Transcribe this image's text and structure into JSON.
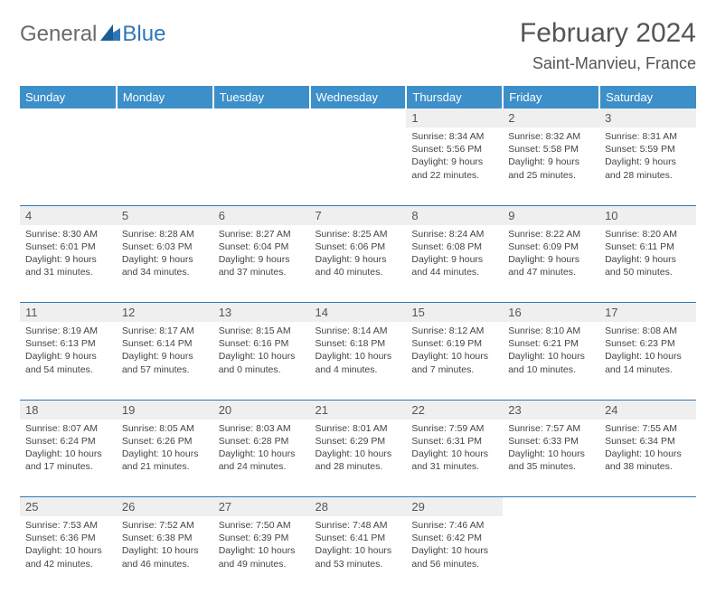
{
  "logo": {
    "text_general": "General",
    "text_blue": "Blue"
  },
  "title": "February 2024",
  "location": "Saint-Manvieu, France",
  "colors": {
    "header_bg": "#3d8fc9",
    "header_text": "#ffffff",
    "daynum_bg": "#efefef",
    "row_divider": "#2f78b7",
    "text": "#444444",
    "title_text": "#555555"
  },
  "typography": {
    "title_fontsize": 30,
    "location_fontsize": 18,
    "dayhdr_fontsize": 13,
    "daynum_fontsize": 13,
    "cell_fontsize": 10.5
  },
  "day_headers": [
    "Sunday",
    "Monday",
    "Tuesday",
    "Wednesday",
    "Thursday",
    "Friday",
    "Saturday"
  ],
  "weeks": [
    [
      null,
      null,
      null,
      null,
      {
        "n": "1",
        "sunrise": "8:34 AM",
        "sunset": "5:56 PM",
        "daylight": "9 hours and 22 minutes."
      },
      {
        "n": "2",
        "sunrise": "8:32 AM",
        "sunset": "5:58 PM",
        "daylight": "9 hours and 25 minutes."
      },
      {
        "n": "3",
        "sunrise": "8:31 AM",
        "sunset": "5:59 PM",
        "daylight": "9 hours and 28 minutes."
      }
    ],
    [
      {
        "n": "4",
        "sunrise": "8:30 AM",
        "sunset": "6:01 PM",
        "daylight": "9 hours and 31 minutes."
      },
      {
        "n": "5",
        "sunrise": "8:28 AM",
        "sunset": "6:03 PM",
        "daylight": "9 hours and 34 minutes."
      },
      {
        "n": "6",
        "sunrise": "8:27 AM",
        "sunset": "6:04 PM",
        "daylight": "9 hours and 37 minutes."
      },
      {
        "n": "7",
        "sunrise": "8:25 AM",
        "sunset": "6:06 PM",
        "daylight": "9 hours and 40 minutes."
      },
      {
        "n": "8",
        "sunrise": "8:24 AM",
        "sunset": "6:08 PM",
        "daylight": "9 hours and 44 minutes."
      },
      {
        "n": "9",
        "sunrise": "8:22 AM",
        "sunset": "6:09 PM",
        "daylight": "9 hours and 47 minutes."
      },
      {
        "n": "10",
        "sunrise": "8:20 AM",
        "sunset": "6:11 PM",
        "daylight": "9 hours and 50 minutes."
      }
    ],
    [
      {
        "n": "11",
        "sunrise": "8:19 AM",
        "sunset": "6:13 PM",
        "daylight": "9 hours and 54 minutes."
      },
      {
        "n": "12",
        "sunrise": "8:17 AM",
        "sunset": "6:14 PM",
        "daylight": "9 hours and 57 minutes."
      },
      {
        "n": "13",
        "sunrise": "8:15 AM",
        "sunset": "6:16 PM",
        "daylight": "10 hours and 0 minutes."
      },
      {
        "n": "14",
        "sunrise": "8:14 AM",
        "sunset": "6:18 PM",
        "daylight": "10 hours and 4 minutes."
      },
      {
        "n": "15",
        "sunrise": "8:12 AM",
        "sunset": "6:19 PM",
        "daylight": "10 hours and 7 minutes."
      },
      {
        "n": "16",
        "sunrise": "8:10 AM",
        "sunset": "6:21 PM",
        "daylight": "10 hours and 10 minutes."
      },
      {
        "n": "17",
        "sunrise": "8:08 AM",
        "sunset": "6:23 PM",
        "daylight": "10 hours and 14 minutes."
      }
    ],
    [
      {
        "n": "18",
        "sunrise": "8:07 AM",
        "sunset": "6:24 PM",
        "daylight": "10 hours and 17 minutes."
      },
      {
        "n": "19",
        "sunrise": "8:05 AM",
        "sunset": "6:26 PM",
        "daylight": "10 hours and 21 minutes."
      },
      {
        "n": "20",
        "sunrise": "8:03 AM",
        "sunset": "6:28 PM",
        "daylight": "10 hours and 24 minutes."
      },
      {
        "n": "21",
        "sunrise": "8:01 AM",
        "sunset": "6:29 PM",
        "daylight": "10 hours and 28 minutes."
      },
      {
        "n": "22",
        "sunrise": "7:59 AM",
        "sunset": "6:31 PM",
        "daylight": "10 hours and 31 minutes."
      },
      {
        "n": "23",
        "sunrise": "7:57 AM",
        "sunset": "6:33 PM",
        "daylight": "10 hours and 35 minutes."
      },
      {
        "n": "24",
        "sunrise": "7:55 AM",
        "sunset": "6:34 PM",
        "daylight": "10 hours and 38 minutes."
      }
    ],
    [
      {
        "n": "25",
        "sunrise": "7:53 AM",
        "sunset": "6:36 PM",
        "daylight": "10 hours and 42 minutes."
      },
      {
        "n": "26",
        "sunrise": "7:52 AM",
        "sunset": "6:38 PM",
        "daylight": "10 hours and 46 minutes."
      },
      {
        "n": "27",
        "sunrise": "7:50 AM",
        "sunset": "6:39 PM",
        "daylight": "10 hours and 49 minutes."
      },
      {
        "n": "28",
        "sunrise": "7:48 AM",
        "sunset": "6:41 PM",
        "daylight": "10 hours and 53 minutes."
      },
      {
        "n": "29",
        "sunrise": "7:46 AM",
        "sunset": "6:42 PM",
        "daylight": "10 hours and 56 minutes."
      },
      null,
      null
    ]
  ],
  "labels": {
    "sunrise": "Sunrise:",
    "sunset": "Sunset:",
    "daylight": "Daylight:"
  }
}
